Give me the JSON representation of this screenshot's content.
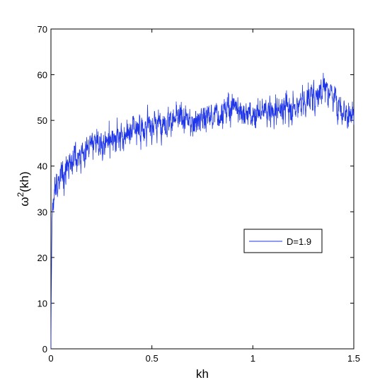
{
  "chart_data": {
    "type": "line",
    "title": "",
    "xlabel": "kh",
    "ylabel_base": "ω",
    "ylabel_sup": "2",
    "ylabel_rest": "(kh)",
    "xlim": [
      0,
      1.5
    ],
    "ylim": [
      0,
      70
    ],
    "xticks": [
      0,
      0.5,
      1,
      1.5
    ],
    "xtick_labels": [
      "0",
      "0.5",
      "1",
      "1.5"
    ],
    "yticks": [
      0,
      10,
      20,
      30,
      40,
      50,
      60,
      70
    ],
    "ytick_labels": [
      "0",
      "10",
      "20",
      "30",
      "40",
      "50",
      "60",
      "70"
    ],
    "grid": false,
    "legend_position": "center-right",
    "series": [
      {
        "name": "D=1.9",
        "color": "#1f35e8",
        "n_points": 1500,
        "trend_x": [
          0,
          0.005,
          0.02,
          0.05,
          0.1,
          0.2,
          0.3,
          0.4,
          0.5,
          0.6,
          0.7,
          0.8,
          0.9,
          1.0,
          1.1,
          1.2,
          1.3,
          1.35,
          1.4,
          1.45,
          1.5
        ],
        "trend_y": [
          0,
          28,
          35,
          38,
          41,
          44,
          46,
          48,
          49,
          50,
          50,
          51,
          53,
          51,
          52,
          53,
          55,
          58,
          55,
          52,
          50
        ],
        "noise_amplitude": 3.5
      }
    ]
  }
}
